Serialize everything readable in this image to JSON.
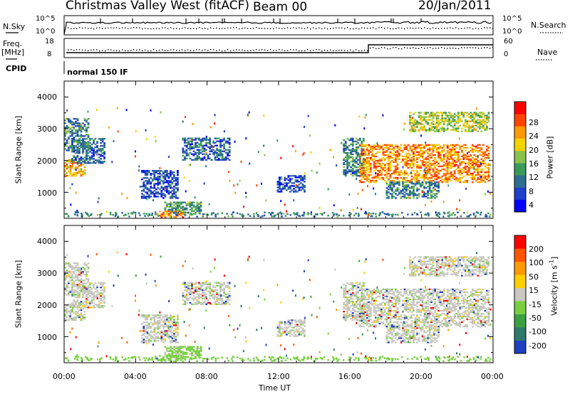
{
  "header": {
    "station": "Christmas Valley West (fitACF)",
    "beam": "Beam 00",
    "date": "20/Jan/2011"
  },
  "status_panels": {
    "nsky_label": "N.Sky",
    "nsky_ticks": [
      "10^5",
      "10^0"
    ],
    "nsearch_label": "N.Search",
    "nsearch_ticks": [
      "10^5",
      "10^0"
    ],
    "freq_label": "Freq.",
    "freq_unit": "[MHz]",
    "freq_ticks": [
      "18",
      "8"
    ],
    "nave_label": "Nave",
    "nave_ticks": [
      "60",
      "0"
    ],
    "cpid_label": "CPID",
    "cpid_value": "normal 150 IF"
  },
  "chart_data": [
    {
      "type": "heatmap",
      "panel": "power",
      "ylabel": "Slant Range [km]",
      "xlabel": "Time UT",
      "x_ticks": [
        "00:00",
        "04:00",
        "08:00",
        "12:00",
        "16:00",
        "20:00",
        "00:00"
      ],
      "y_ticks": [
        "4000",
        "3000",
        "2000",
        "1000"
      ],
      "xlim_hours": [
        0,
        24
      ],
      "ylim_km": [
        180,
        4500
      ],
      "colorbar_label": "Power [dB]",
      "colorbar_ticks": [
        "28",
        "24",
        "20",
        "16",
        "12",
        "8",
        "4"
      ],
      "colorbar_colors": [
        "#0000ff",
        "#1f3fcc",
        "#2e6e8e",
        "#3a9a5a",
        "#8bc34a",
        "#f5d300",
        "#ff9900",
        "#ff4400",
        "#ff0000"
      ],
      "echo_regions": [
        {
          "t0": 0.0,
          "t1": 1.2,
          "r0": 1500,
          "r1": 2000,
          "power": 20
        },
        {
          "t0": 0.4,
          "t1": 2.3,
          "r0": 1900,
          "r1": 2700,
          "power": 8
        },
        {
          "t0": 0.0,
          "t1": 1.4,
          "r0": 2300,
          "r1": 3300,
          "power": 10
        },
        {
          "t0": 4.3,
          "t1": 6.3,
          "r0": 800,
          "r1": 1700,
          "power": 6
        },
        {
          "t0": 5.6,
          "t1": 7.6,
          "r0": 300,
          "r1": 700,
          "power": 12
        },
        {
          "t0": 5.3,
          "t1": 6.6,
          "r0": 200,
          "r1": 420,
          "power": 22
        },
        {
          "t0": 6.6,
          "t1": 9.2,
          "r0": 2000,
          "r1": 2700,
          "power": 8
        },
        {
          "t0": 11.9,
          "t1": 13.4,
          "r0": 1000,
          "r1": 1500,
          "power": 6
        },
        {
          "t0": 15.6,
          "t1": 16.8,
          "r0": 1500,
          "r1": 2700,
          "power": 10
        },
        {
          "t0": 16.5,
          "t1": 23.8,
          "r0": 1300,
          "r1": 2500,
          "power": 22
        },
        {
          "t0": 19.3,
          "t1": 23.8,
          "r0": 2900,
          "r1": 3500,
          "power": 16
        },
        {
          "t0": 18.0,
          "t1": 21.0,
          "r0": 800,
          "r1": 1300,
          "power": 10
        }
      ]
    },
    {
      "type": "heatmap",
      "panel": "velocity",
      "ylabel": "Slant Range [km]",
      "xlabel": "Time UT",
      "x_ticks": [
        "00:00",
        "04:00",
        "08:00",
        "12:00",
        "16:00",
        "20:00",
        "00:00"
      ],
      "y_ticks": [
        "4000",
        "3000",
        "2000",
        "1000"
      ],
      "xlim_hours": [
        0,
        24
      ],
      "ylim_km": [
        180,
        4500
      ],
      "colorbar_label": "Velocity [m s",
      "colorbar_label_sup": "-1",
      "colorbar_label_end": "]",
      "colorbar_ticks": [
        "200",
        "100",
        "50",
        "15",
        "-15",
        "-50",
        "-100",
        "-200"
      ],
      "colorbar_colors": [
        "#ff0000",
        "#ff5500",
        "#ff9900",
        "#ffd000",
        "#c8c8c0",
        "#78d040",
        "#3aa040",
        "#2e7a6a",
        "#2040c0"
      ]
    }
  ]
}
